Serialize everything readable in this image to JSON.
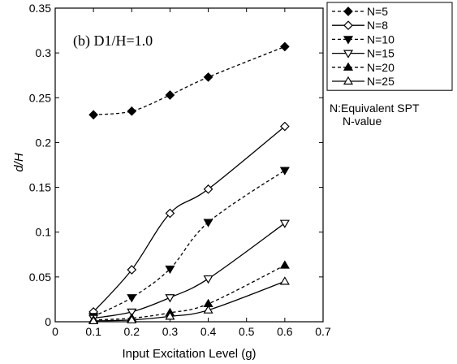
{
  "chart_data": {
    "type": "line",
    "panel_label": "(b) D1/H=1.0",
    "xlabel": "Input Excitation Level (g)",
    "ylabel": "d/H",
    "xlim": [
      0,
      0.7
    ],
    "ylim": [
      0,
      0.35
    ],
    "xticks": [
      "0",
      "0.1",
      "0.2",
      "0.3",
      "0.4",
      "0.5",
      "0.6",
      "0.7"
    ],
    "yticks": [
      "0",
      "0.05",
      "0.1",
      "0.15",
      "0.2",
      "0.25",
      "0.3",
      "0.35"
    ],
    "grid": false,
    "legend_position": "outside-right-top",
    "series": [
      {
        "name": "N=5",
        "marker": "diamond-filled",
        "line": "dashed",
        "x": [
          0.1,
          0.2,
          0.3,
          0.4,
          0.6
        ],
        "y": [
          0.231,
          0.235,
          0.253,
          0.273,
          0.307
        ]
      },
      {
        "name": "N=8",
        "marker": "diamond-open",
        "line": "solid",
        "x": [
          0.1,
          0.2,
          0.3,
          0.4,
          0.6
        ],
        "y": [
          0.011,
          0.058,
          0.121,
          0.148,
          0.218
        ]
      },
      {
        "name": "N=10",
        "marker": "triangle-down-filled",
        "line": "dashed",
        "x": [
          0.1,
          0.2,
          0.3,
          0.4,
          0.6
        ],
        "y": [
          0.006,
          0.027,
          0.059,
          0.111,
          0.169
        ]
      },
      {
        "name": "N=15",
        "marker": "triangle-down-open",
        "line": "solid",
        "x": [
          0.1,
          0.2,
          0.3,
          0.4,
          0.6
        ],
        "y": [
          0.004,
          0.011,
          0.027,
          0.048,
          0.11
        ]
      },
      {
        "name": "N=20",
        "marker": "triangle-up-filled",
        "line": "dashed",
        "x": [
          0.1,
          0.2,
          0.3,
          0.4,
          0.6
        ],
        "y": [
          0.002,
          0.004,
          0.01,
          0.02,
          0.063
        ]
      },
      {
        "name": "N=25",
        "marker": "triangle-up-open",
        "line": "solid",
        "x": [
          0.1,
          0.2,
          0.3,
          0.4,
          0.6
        ],
        "y": [
          0.001,
          0.002,
          0.006,
          0.013,
          0.045
        ]
      }
    ]
  },
  "legend_note": {
    "line1": "N:Equivalent SPT",
    "line2": "N-value"
  },
  "colors": {
    "ink": "#000000",
    "background": "#ffffff"
  }
}
